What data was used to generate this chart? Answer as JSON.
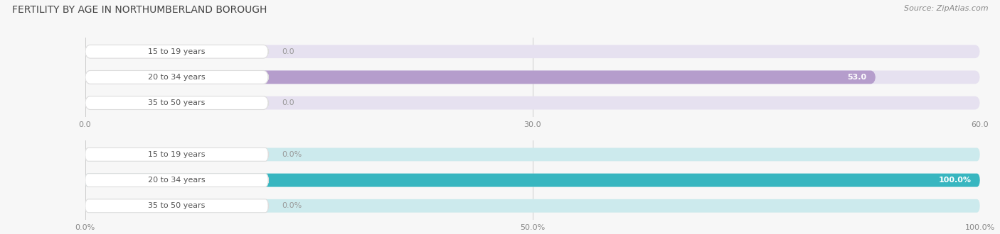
{
  "title": "FERTILITY BY AGE IN NORTHUMBERLAND BOROUGH",
  "source": "Source: ZipAtlas.com",
  "top_chart": {
    "categories": [
      "15 to 19 years",
      "20 to 34 years",
      "35 to 50 years"
    ],
    "values": [
      0.0,
      53.0,
      0.0
    ],
    "xlim": [
      0,
      60.0
    ],
    "xticks": [
      0.0,
      30.0,
      60.0
    ],
    "xticklabels": [
      "0.0",
      "30.0",
      "60.0"
    ],
    "bar_color": "#b59dcc",
    "bar_bg_color": "#e6e1f0",
    "value_label_inside_color": "#ffffff",
    "value_label_outside_color": "#999999",
    "bar_height": 0.52,
    "is_percent": false
  },
  "bottom_chart": {
    "categories": [
      "15 to 19 years",
      "20 to 34 years",
      "35 to 50 years"
    ],
    "values": [
      0.0,
      100.0,
      0.0
    ],
    "xlim": [
      0,
      100.0
    ],
    "xticks": [
      0.0,
      50.0,
      100.0
    ],
    "xticklabels": [
      "0.0%",
      "50.0%",
      "100.0%"
    ],
    "bar_color": "#38b6c0",
    "bar_bg_color": "#cceaed",
    "value_label_inside_color": "#ffffff",
    "value_label_outside_color": "#999999",
    "bar_height": 0.52,
    "is_percent": true
  },
  "background_color": "#f7f7f7",
  "title_fontsize": 10,
  "source_fontsize": 8,
  "label_fontsize": 8,
  "tick_fontsize": 8,
  "badge_text_color": "#555555",
  "badge_bg_color": "#ffffff",
  "badge_edge_color": "#dddddd"
}
